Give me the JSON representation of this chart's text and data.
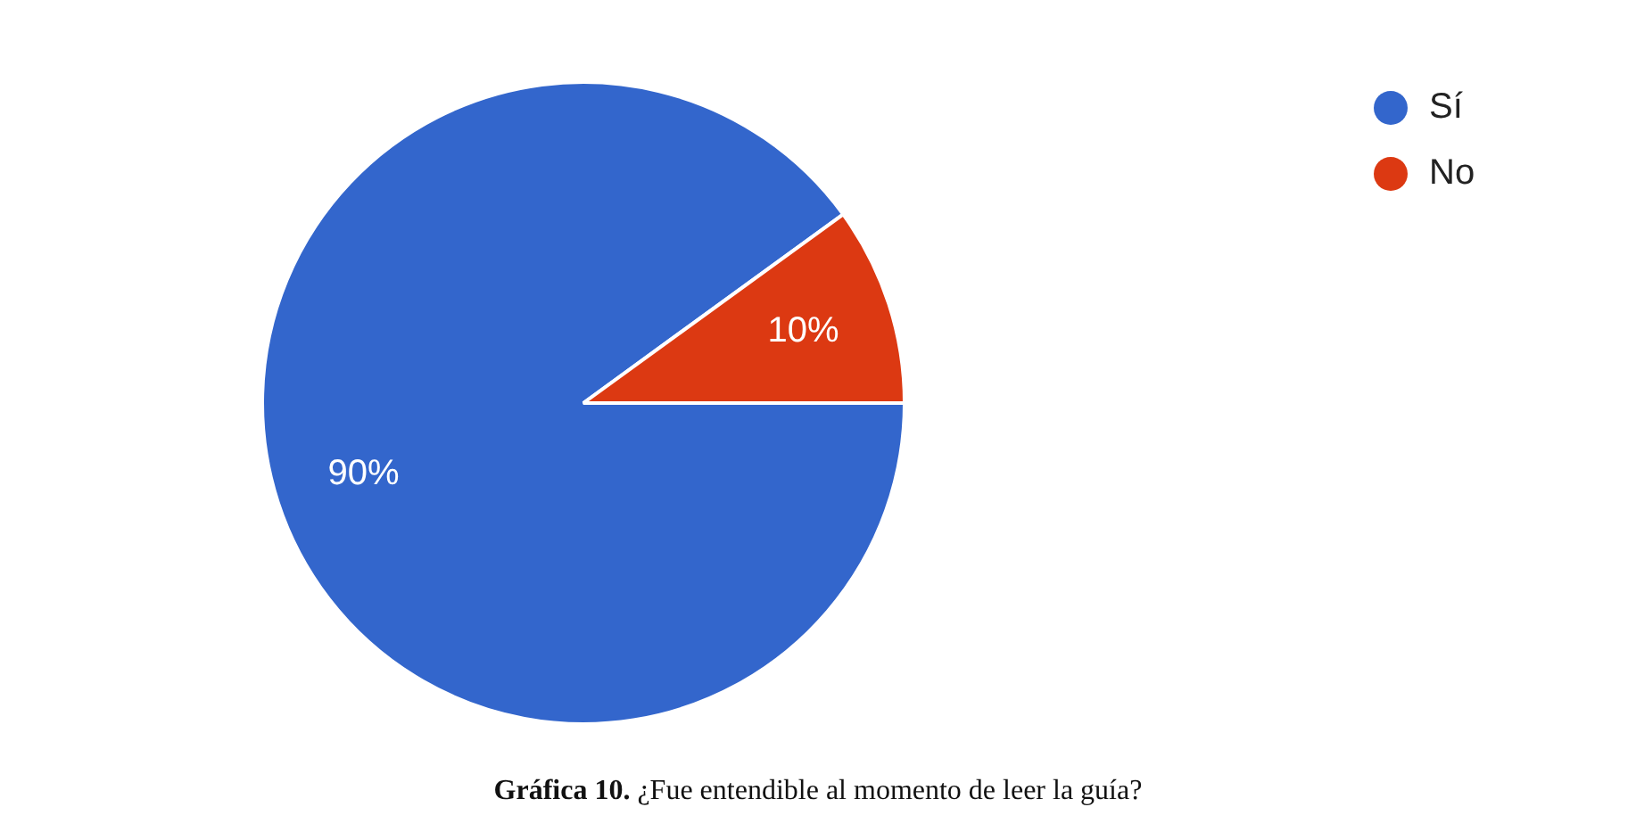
{
  "chart_data": {
    "type": "pie",
    "categories": [
      "Sí",
      "No"
    ],
    "values": [
      90,
      10
    ],
    "colors": [
      "#3366cc",
      "#dc3912"
    ],
    "value_labels": [
      "90%",
      "10%"
    ],
    "legend": "top right",
    "annotations": [
      "Gráfica 10. ¿Fue entendible al momento de leer la guía?"
    ]
  }
}
